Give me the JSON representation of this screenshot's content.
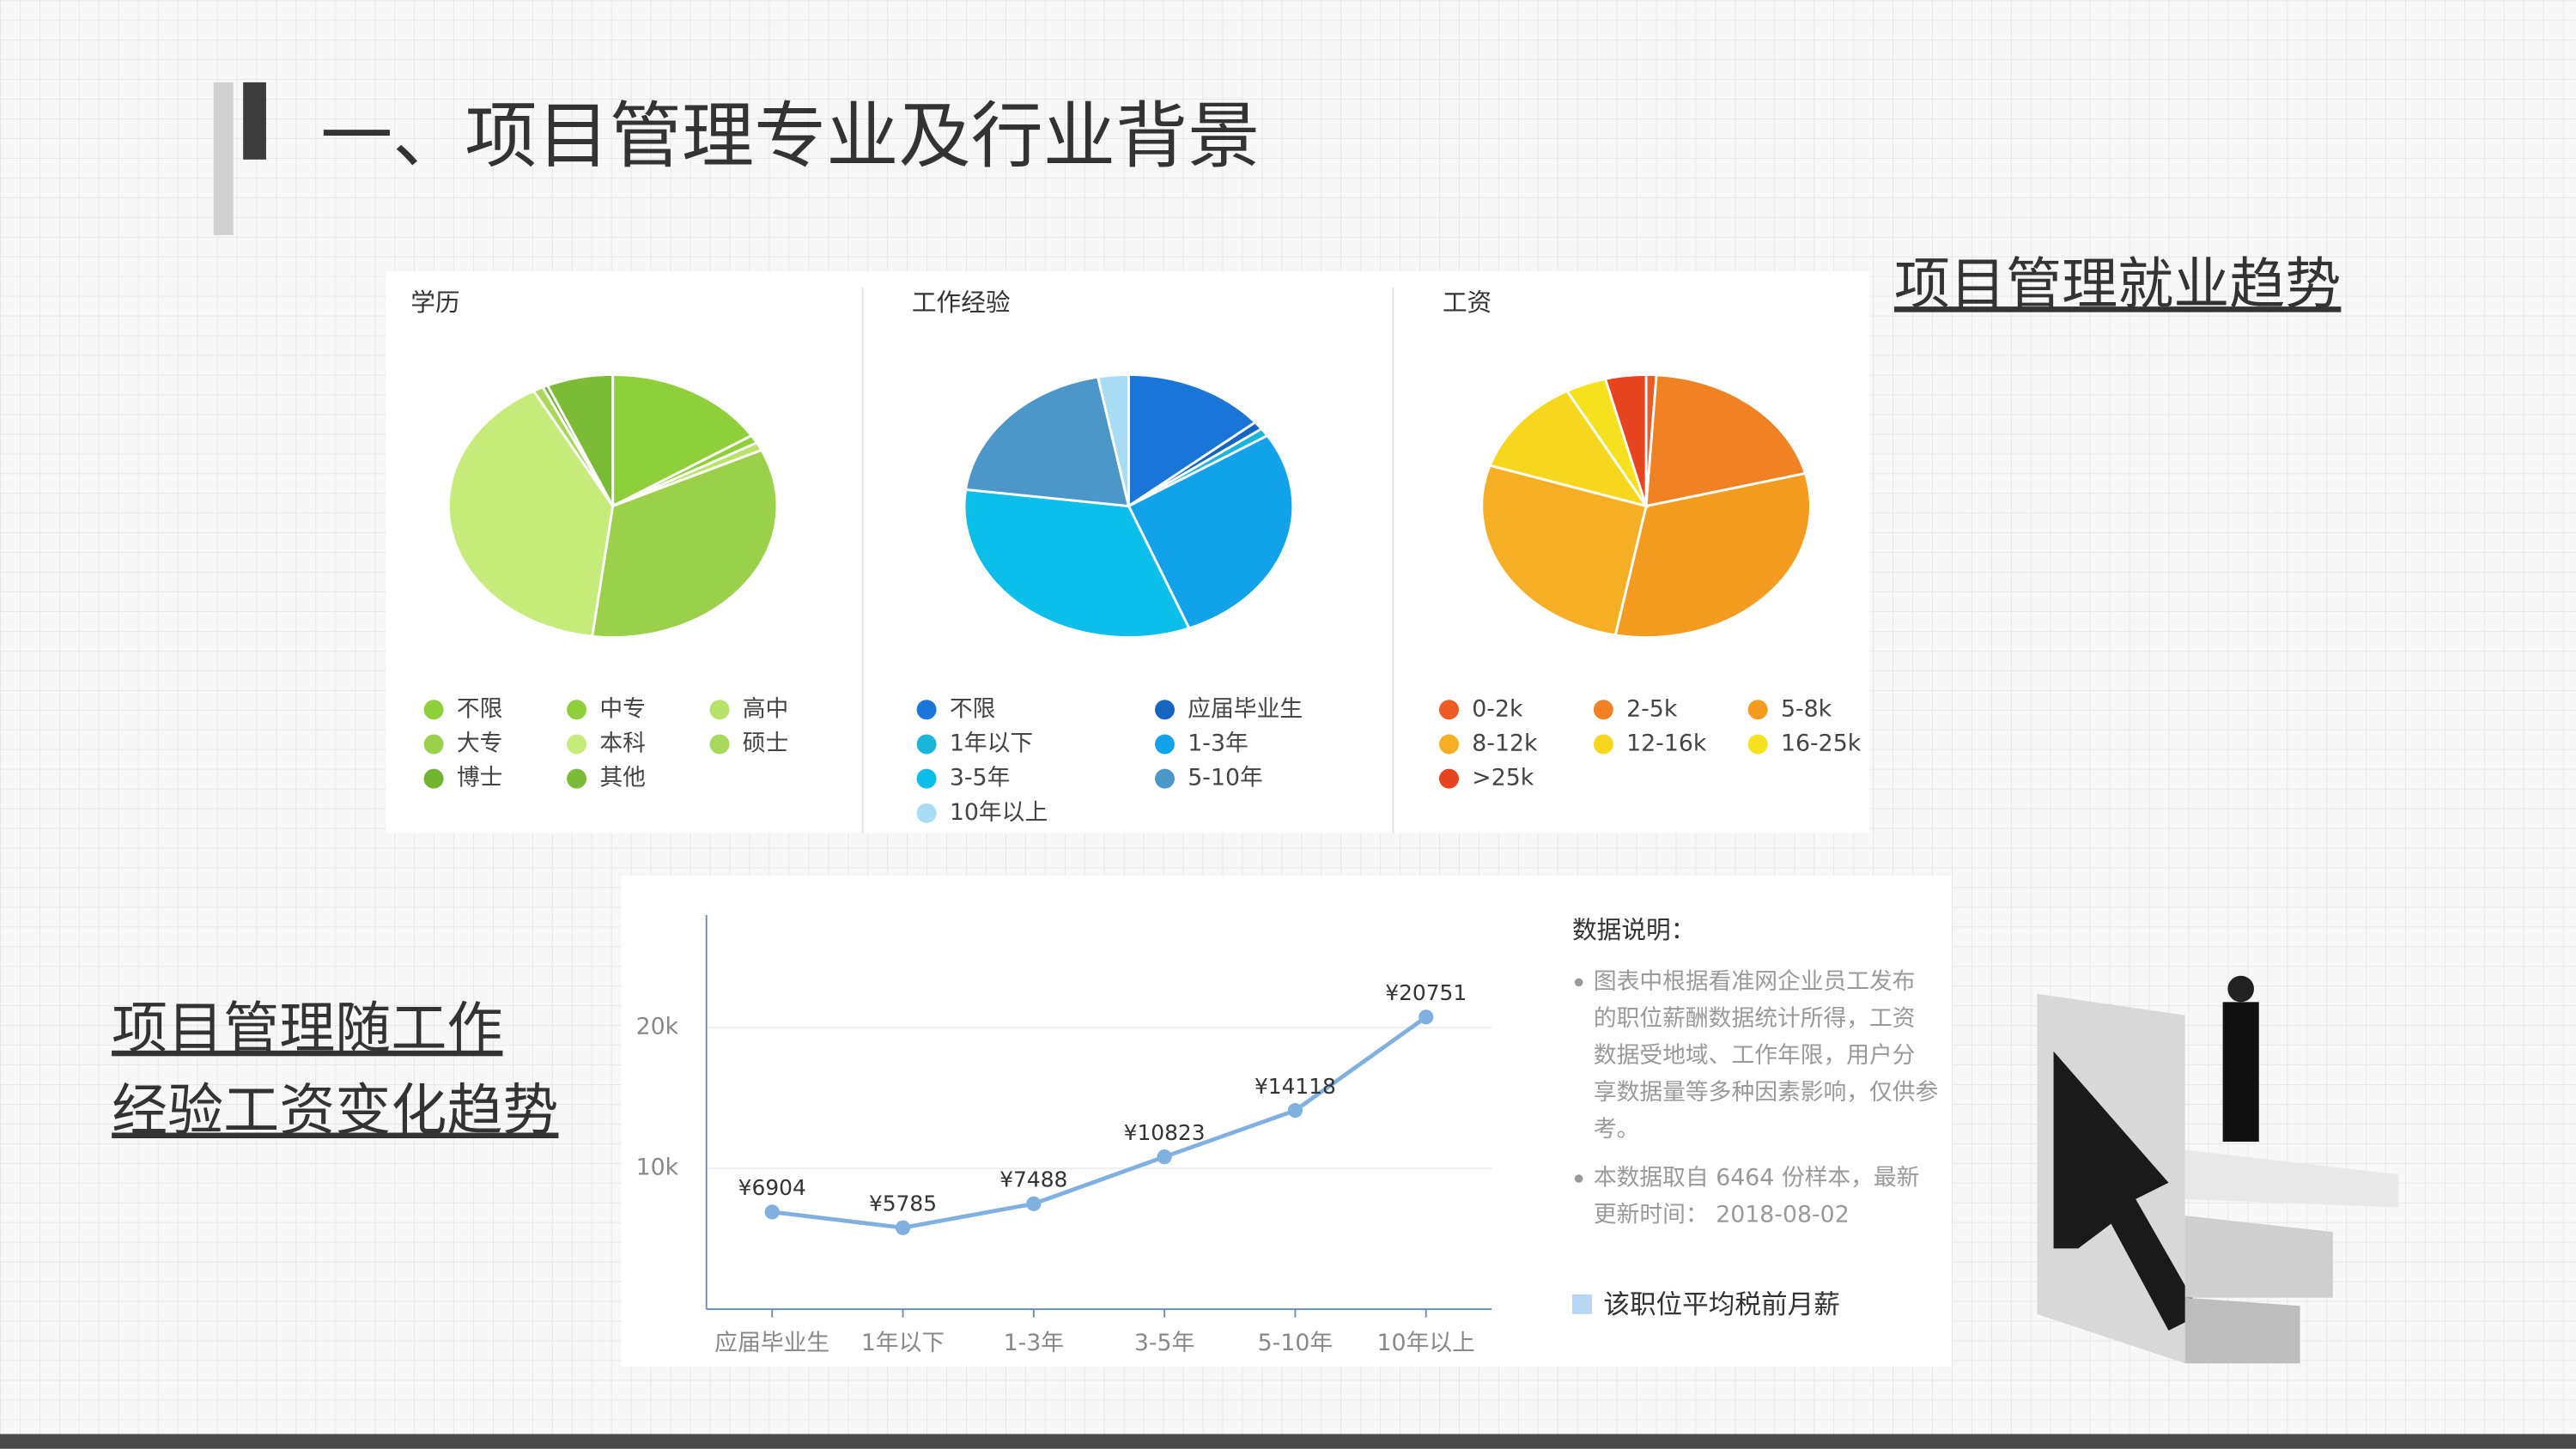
{
  "header": {
    "title": "一、项目管理专业及行业背景"
  },
  "captions": {
    "employment": "项目管理就业趋势",
    "salary_trend": [
      "项目管理随工作",
      "经验工资变化趋势"
    ]
  },
  "notes": {
    "heading": "数据说明：",
    "items": [
      [
        "图表中根据看准网企业员工发布",
        "的职位薪酬数据统计所得，工资",
        "数据受地域、工作年限，用户分",
        "享数据量等多种因素影响，仅供参",
        "考。"
      ],
      [
        "本数据取自 6464 份样本，最新",
        "更新时间： 2018-08-02"
      ]
    ]
  },
  "chart_data": [
    {
      "type": "pie",
      "title": "学历",
      "categories": [
        "不限",
        "中专",
        "高中",
        "大专",
        "本科",
        "硕士",
        "博士",
        "其他"
      ],
      "values": [
        16,
        1,
        1,
        34,
        40,
        1,
        0.5,
        6.5
      ],
      "colors": [
        "#8fcf3c",
        "#8fcf3c",
        "#b7e36b",
        "#9bd14a",
        "#c5ec7a",
        "#a8d85a",
        "#6fb32f",
        "#7cbb36"
      ]
    },
    {
      "type": "pie",
      "title": "工作经验",
      "categories": [
        "不限",
        "应届毕业生",
        "1年以下",
        "1-3年",
        "3-5年",
        "5-10年",
        "10年以上"
      ],
      "values": [
        14,
        1,
        1,
        28,
        33,
        20,
        3
      ],
      "colors": [
        "#1a75d8",
        "#1565c0",
        "#1ab5d9",
        "#12a2ea",
        "#0bbfea",
        "#4a97c8",
        "#a8dcf5"
      ]
    },
    {
      "type": "pie",
      "title": "工资",
      "categories": [
        "0-2k",
        "2-5k",
        "5-8k",
        "8-12k",
        "12-16k",
        "16-25k",
        ">25k"
      ],
      "values": [
        1,
        20,
        32,
        27,
        12,
        4,
        4
      ],
      "colors": [
        "#ee5a24",
        "#f08224",
        "#f39c1f",
        "#f6ae24",
        "#f7d71e",
        "#f5e11d",
        "#e8441f"
      ]
    },
    {
      "type": "line",
      "categories": [
        "应届毕业生",
        "1年以下",
        "1-3年",
        "3-5年",
        "5-10年",
        "10年以上"
      ],
      "series": [
        {
          "name": "该职位平均税前月薪",
          "color": "#7fb0e0",
          "values": [
            6904,
            5785,
            7488,
            10823,
            14118,
            20751
          ],
          "value_labels": [
            "¥6904",
            "¥5785",
            "¥7488",
            "¥10823",
            "¥14118",
            "¥20751"
          ]
        }
      ],
      "ylim": [
        0,
        28000
      ],
      "yticks": [
        {
          "value": 10000,
          "label": "10k"
        },
        {
          "value": 20000,
          "label": "20k"
        }
      ],
      "grid": true
    }
  ]
}
